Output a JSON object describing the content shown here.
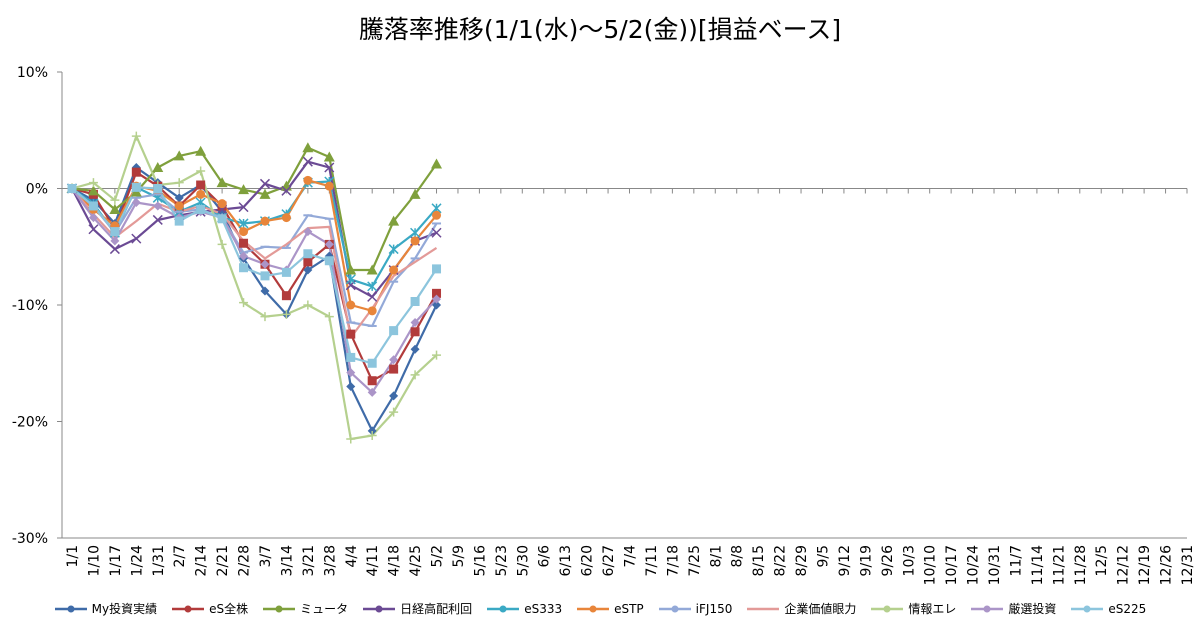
{
  "chart_data": {
    "type": "line",
    "title": "騰落率推移(1/1(水)～5/2(金))[損益ベース]",
    "xlabel": "",
    "ylabel": "",
    "ylim": [
      -30,
      10
    ],
    "y_ticks": [
      10,
      0,
      -10,
      -20,
      -30
    ],
    "y_tick_labels": [
      "10%",
      "0%",
      "-10%",
      "-20%",
      "-30%"
    ],
    "grid": "horizontal at 0",
    "legend_position": "bottom",
    "x": [
      "1/1",
      "1/10",
      "1/17",
      "1/24",
      "1/31",
      "2/7",
      "2/14",
      "2/21",
      "2/28",
      "3/7",
      "3/14",
      "3/21",
      "3/28",
      "4/4",
      "4/11",
      "4/18",
      "4/25",
      "5/2"
    ],
    "x_tick_labels": [
      "1/1",
      "1/10",
      "1/17",
      "1/24",
      "1/31",
      "2/7",
      "2/14",
      "2/21",
      "2/28",
      "3/7",
      "3/14",
      "3/21",
      "3/28",
      "4/4",
      "4/11",
      "4/18",
      "4/25",
      "5/2",
      "5/9",
      "5/16",
      "5/23",
      "5/30",
      "6/6",
      "6/13",
      "6/20",
      "6/27",
      "7/4",
      "7/11",
      "7/18",
      "7/25",
      "8/1",
      "8/8",
      "8/15",
      "8/22",
      "8/29",
      "9/5",
      "9/12",
      "9/19",
      "9/26",
      "10/3",
      "10/10",
      "10/17",
      "10/24",
      "10/31",
      "11/7",
      "11/14",
      "11/21",
      "11/28",
      "12/5",
      "12/12",
      "12/19",
      "12/26",
      "12/31"
    ],
    "series": [
      {
        "name": "My投資実績",
        "color": "#3f6ba8",
        "marker": "diamond",
        "values": [
          0,
          -1.0,
          -3.0,
          1.8,
          0.5,
          -0.8,
          0.3,
          -2.0,
          -6.0,
          -8.8,
          -10.8,
          -7.0,
          -5.8,
          -17.0,
          -20.8,
          -17.8,
          -13.8,
          -10.0
        ]
      },
      {
        "name": "eS全株",
        "color": "#b23b3b",
        "marker": "square",
        "values": [
          0,
          -0.5,
          -3.5,
          1.4,
          0.2,
          -1.5,
          0.3,
          -1.5,
          -4.7,
          -6.5,
          -9.2,
          -6.3,
          -4.8,
          -12.5,
          -16.5,
          -15.5,
          -12.3,
          -9.0
        ]
      },
      {
        "name": "ミュータ",
        "color": "#7fa03c",
        "marker": "triangle",
        "values": [
          0,
          -0.2,
          -1.8,
          -0.3,
          1.8,
          2.8,
          3.2,
          0.5,
          -0.1,
          -0.5,
          0.2,
          3.5,
          2.7,
          -7.0,
          -7.0,
          -2.8,
          -0.5,
          2.1
        ]
      },
      {
        "name": "日経高配利回",
        "color": "#6b4a94",
        "marker": "x",
        "values": [
          0,
          -3.5,
          -5.2,
          -4.3,
          -2.7,
          -2.3,
          -2.0,
          -1.8,
          -1.6,
          0.4,
          -0.2,
          2.3,
          1.8,
          -8.3,
          -9.3,
          -7.0,
          -4.5,
          -3.8
        ]
      },
      {
        "name": "eS333",
        "color": "#3aa9c4",
        "marker": "star",
        "values": [
          0,
          -1.3,
          -3.8,
          0.1,
          -0.8,
          -2.0,
          -1.2,
          -2.5,
          -3.0,
          -2.8,
          -2.2,
          0.5,
          0.6,
          -7.8,
          -8.4,
          -5.2,
          -3.8,
          -1.7
        ]
      },
      {
        "name": "eSTP",
        "color": "#e8853a",
        "marker": "circle",
        "values": [
          0,
          -1.8,
          -3.2,
          0.2,
          -0.2,
          -1.5,
          -0.5,
          -1.3,
          -3.7,
          -2.8,
          -2.5,
          0.7,
          0.2,
          -10.0,
          -10.5,
          -7.0,
          -4.5,
          -2.3
        ]
      },
      {
        "name": "iFJ150",
        "color": "#93a9d8",
        "marker": "dash",
        "values": [
          0,
          -1.5,
          -3.8,
          -0.8,
          -0.5,
          -2.0,
          -1.8,
          -2.5,
          -5.5,
          -5.0,
          -5.1,
          -2.3,
          -2.6,
          -11.5,
          -11.8,
          -8.0,
          -6.0,
          -3.0
        ]
      },
      {
        "name": "企業価値眼力",
        "color": "#e39a98",
        "marker": "none",
        "values": [
          0,
          -2.2,
          -4.2,
          -2.8,
          -1.3,
          -2.0,
          -1.5,
          -2.2,
          -4.5,
          -6.0,
          -4.8,
          -3.4,
          -3.3,
          -12.8,
          -10.3,
          -7.5,
          -6.3,
          -5.1
        ]
      },
      {
        "name": "情報エレ",
        "color": "#b5d08e",
        "marker": "plus",
        "values": [
          0,
          0.5,
          -1.0,
          4.5,
          0.3,
          0.5,
          1.5,
          -4.8,
          -9.8,
          -11.0,
          -10.8,
          -10.0,
          -11.0,
          -21.5,
          -21.2,
          -19.2,
          -16.0,
          -14.3
        ]
      },
      {
        "name": "厳選投資",
        "color": "#ab95c8",
        "marker": "diamond",
        "values": [
          0,
          -2.5,
          -4.5,
          -1.2,
          -1.5,
          -2.5,
          -2.0,
          -2.5,
          -5.8,
          -6.5,
          -7.0,
          -3.7,
          -4.8,
          -15.8,
          -17.5,
          -14.7,
          -11.5,
          -9.5
        ]
      },
      {
        "name": "eS225",
        "color": "#8cc5dd",
        "marker": "square",
        "values": [
          0,
          -1.5,
          -3.7,
          0.1,
          0.0,
          -2.8,
          -1.8,
          -2.6,
          -6.8,
          -7.5,
          -7.2,
          -5.6,
          -6.2,
          -14.5,
          -15.0,
          -12.2,
          -9.7,
          -6.9
        ]
      }
    ]
  }
}
